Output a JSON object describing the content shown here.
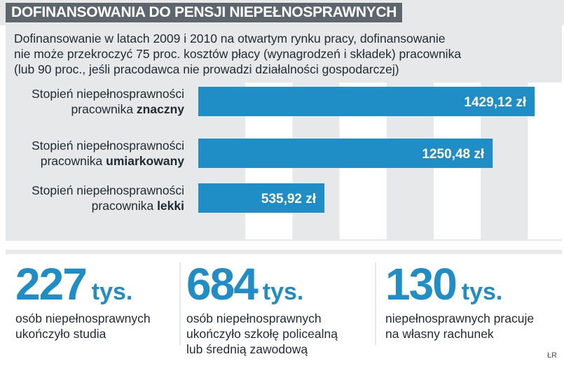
{
  "title": "DOFINANSOWANIA DO PENSJI NIEPEŁNOSPRAWNYCH",
  "intro_lines": [
    "Dofinansowanie w latach 2009 i 2010 na otwartym rynku pracy, dofinansowanie",
    "nie może przekroczyć 75 proc. kosztów płacy (wynagrodzeń i składek) pracownika",
    "(lub 90 proc., jeśli pracodawca nie prowadzi działalności gospodarczej)"
  ],
  "chart_data": {
    "type": "bar",
    "orientation": "horizontal",
    "categories": [
      {
        "line1": "Stopień niepełnosprawności",
        "line2_prefix": "pracownika ",
        "line2_bold": "znaczny"
      },
      {
        "line1": "Stopień niepełnosprawności",
        "line2_prefix": "pracownika ",
        "line2_bold": "umiarkowany"
      },
      {
        "line1": "Stopień niepełnosprawności",
        "line2_prefix": "pracownika ",
        "line2_bold": "lekki"
      }
    ],
    "values": [
      1429.12,
      1250.48,
      535.92
    ],
    "value_labels": [
      "1429,12 zł",
      "1250,48 zł",
      "535,92 zł"
    ],
    "xlim": [
      0,
      1600
    ],
    "grid": true,
    "bar_color": "#1f8ec6",
    "background_color": "#e6e8e9",
    "grid_band_color": "#ffffff"
  },
  "stats": [
    {
      "number": "227",
      "unit": "tys.",
      "lines": [
        "osób niepełnosprawnych",
        "ukończyło studia"
      ]
    },
    {
      "number": "684",
      "unit": "tys.",
      "lines": [
        "osób niepełnosprawnych",
        "ukończyło szkołę policealną",
        "lub średnią zawodową"
      ]
    },
    {
      "number": "130",
      "unit": "tys.",
      "lines": [
        "niepełnosprawnych pracuje",
        "na własny rachunek"
      ]
    }
  ],
  "credit": "ŁR",
  "colors": {
    "accent": "#1f8ec6",
    "title_bg": "#5d666c",
    "panel_bg": "#e6e8e9"
  }
}
